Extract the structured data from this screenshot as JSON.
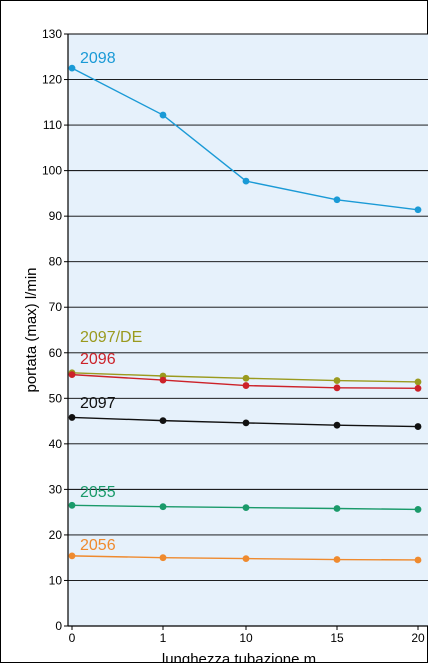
{
  "chart_data": {
    "type": "line",
    "xlabel": "lunghezza tubazione m",
    "ylabel": "portata (max)  l/min",
    "x_ticks": [
      "0",
      "1",
      "10",
      "15",
      "20"
    ],
    "ylim": [
      0,
      130
    ],
    "y_ticks": [
      "0",
      "10",
      "20",
      "30",
      "40",
      "50",
      "60",
      "70",
      "80",
      "90",
      "100",
      "110",
      "120",
      "130"
    ],
    "grid": "horizontal",
    "colors": {
      "background": "#e6f1fb",
      "frame": "#000000"
    },
    "series": [
      {
        "name": "2098",
        "color": "#1a9ad6",
        "values": [
          122.5,
          112.2,
          97.7,
          93.6,
          91.4
        ]
      },
      {
        "name": "2097/DE",
        "color": "#9a9a1e",
        "values": [
          55.6,
          54.9,
          54.4,
          53.9,
          53.6
        ]
      },
      {
        "name": "2096",
        "color": "#cc2229",
        "values": [
          55.2,
          54.0,
          52.8,
          52.3,
          52.2
        ]
      },
      {
        "name": "2097",
        "color": "#111111",
        "values": [
          45.8,
          45.1,
          44.6,
          44.1,
          43.8
        ]
      },
      {
        "name": "2055",
        "color": "#1a9a6a",
        "values": [
          26.5,
          26.2,
          26.0,
          25.8,
          25.6
        ]
      },
      {
        "name": "2056",
        "color": "#ef8a2e",
        "values": [
          15.4,
          15.0,
          14.8,
          14.6,
          14.5
        ]
      }
    ]
  }
}
